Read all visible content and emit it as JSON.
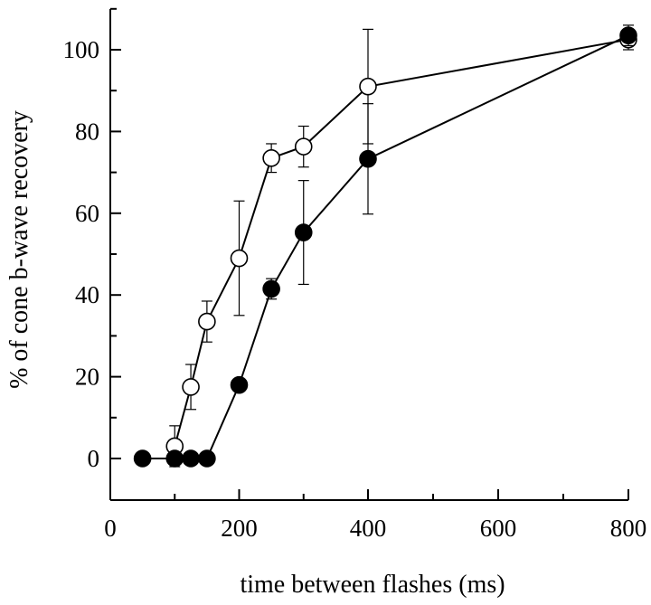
{
  "chart_data": {
    "type": "line",
    "title": "",
    "xlabel": "time between flashes (ms)",
    "ylabel": "% of cone b-wave recovery",
    "x_ticks": [
      0,
      200,
      400,
      600,
      800
    ],
    "y_ticks": [
      0,
      20,
      40,
      60,
      80,
      100
    ],
    "x_minor_ticks": [
      100,
      300,
      500,
      700
    ],
    "xlim": [
      0,
      800
    ],
    "ylim": [
      -10,
      110
    ],
    "x_axis_note": "axis is non-linear: 0 to 400 ms on a wider scale than 400 to 800 ms",
    "grid": false,
    "legend": "none",
    "series": [
      {
        "marker": "open-circle",
        "color": "#000000",
        "points": [
          {
            "x": 100,
            "y": 3,
            "err": 5
          },
          {
            "x": 125,
            "y": 17.5,
            "err": 5.5
          },
          {
            "x": 150,
            "y": 33.5,
            "err": 5
          },
          {
            "x": 200,
            "y": 49,
            "err": 14
          },
          {
            "x": 250,
            "y": 73.5,
            "err": 3.5
          },
          {
            "x": 300,
            "y": 76.3,
            "err": 5
          },
          {
            "x": 400,
            "y": 91,
            "err": 14
          },
          {
            "x": 800,
            "y": 102.5,
            "err": 2.5
          }
        ]
      },
      {
        "marker": "filled-circle",
        "color": "#000000",
        "points": [
          {
            "x": 50,
            "y": 0,
            "err": 0
          },
          {
            "x": 100,
            "y": 0,
            "err": 0
          },
          {
            "x": 125,
            "y": 0,
            "err": 0
          },
          {
            "x": 150,
            "y": 0,
            "err": 0
          },
          {
            "x": 200,
            "y": 18,
            "err": 0
          },
          {
            "x": 250,
            "y": 41.5,
            "err": 2.5
          },
          {
            "x": 300,
            "y": 55.3,
            "err": 12.7
          },
          {
            "x": 400,
            "y": 73.3,
            "err": 13.5
          },
          {
            "x": 800,
            "y": 103.5,
            "err": 2.5
          }
        ]
      }
    ]
  }
}
